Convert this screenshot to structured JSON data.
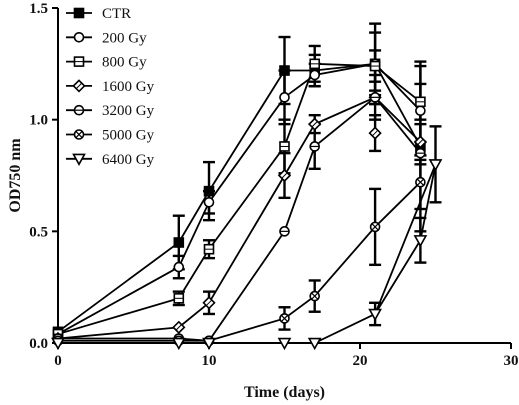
{
  "chart_data": {
    "type": "line",
    "title": "",
    "xlabel": "Time (days)",
    "ylabel": "OD750 nm",
    "xlim": [
      0,
      30
    ],
    "ylim": [
      0,
      1.5
    ],
    "xticks": [
      0,
      10,
      20,
      30
    ],
    "xtick_labels": [
      "0",
      "10",
      "20",
      "30"
    ],
    "yticks": [
      0.0,
      0.5,
      1.0,
      1.5
    ],
    "ytick_labels": [
      "0.0",
      "0.5",
      "1.0",
      "1.5"
    ],
    "grid": false,
    "legend_position": "top-left",
    "series": [
      {
        "name": "CTR",
        "marker": "square-filled",
        "x": [
          0,
          8,
          10,
          15,
          17,
          21,
          24
        ],
        "y": [
          0.05,
          0.45,
          0.68,
          1.22,
          1.22,
          1.25,
          0.88
        ],
        "err": [
          0.02,
          0.12,
          0.13,
          0.15,
          0.07,
          0.18,
          0.38
        ]
      },
      {
        "name": "200 Gy",
        "marker": "circle-open",
        "x": [
          0,
          8,
          10,
          15,
          17,
          21,
          24
        ],
        "y": [
          0.04,
          0.34,
          0.63,
          1.1,
          1.2,
          1.25,
          1.04
        ],
        "err": [
          0.02,
          0.05,
          0.05,
          0.12,
          0.05,
          0.14,
          0.2
        ]
      },
      {
        "name": "800 Gy",
        "marker": "square-open",
        "x": [
          0,
          8,
          10,
          15,
          17,
          21,
          24
        ],
        "y": [
          0.04,
          0.2,
          0.42,
          0.88,
          1.25,
          1.24,
          1.08
        ],
        "err": [
          0.02,
          0.03,
          0.04,
          0.12,
          0.08,
          0.07,
          0.08
        ]
      },
      {
        "name": "1600 Gy",
        "marker": "diamond-open",
        "x": [
          0,
          8,
          10,
          15,
          17,
          21,
          24
        ],
        "y": [
          0.02,
          0.07,
          0.18,
          0.75,
          0.98,
          1.1,
          0.9
        ],
        "err": [
          0.01,
          0.02,
          0.05,
          0.1,
          0.04,
          0.1,
          0.08
        ]
      },
      {
        "name": "3200 Gy",
        "marker": "circle-half",
        "x": [
          0,
          8,
          10,
          15,
          17,
          21,
          24
        ],
        "y": [
          0.02,
          0.02,
          0.01,
          0.5,
          0.88,
          1.1,
          0.85
        ],
        "err": [
          0.01,
          0.01,
          0.01,
          0.02,
          0.1,
          0.03,
          0.05
        ]
      },
      {
        "name": "5000 Gy",
        "marker": "circle-cross",
        "x": [
          0,
          8,
          10,
          15,
          17,
          21,
          24
        ],
        "y": [
          0.01,
          0.01,
          0.01,
          0.11,
          0.21,
          0.52,
          0.72
        ],
        "err": [
          0.01,
          0.01,
          0.01,
          0.05,
          0.07,
          0.17,
          0.12
        ]
      },
      {
        "name": "6400 Gy",
        "marker": "triangle-down-open",
        "x": [
          0,
          8,
          10,
          15,
          17,
          21,
          25
        ],
        "y": [
          0.0,
          0.0,
          0.0,
          0.0,
          0.0,
          0.13,
          0.8
        ],
        "err": [
          0.005,
          0.005,
          0.005,
          0.005,
          0.005,
          0.05,
          0.17
        ]
      }
    ],
    "extra_points": [
      {
        "series": "6400 Gy",
        "x": 24,
        "y": 0.46,
        "err": 0.1
      },
      {
        "series": "1600 Gy",
        "x": 21,
        "y": 0.94,
        "err": 0.08
      }
    ]
  }
}
